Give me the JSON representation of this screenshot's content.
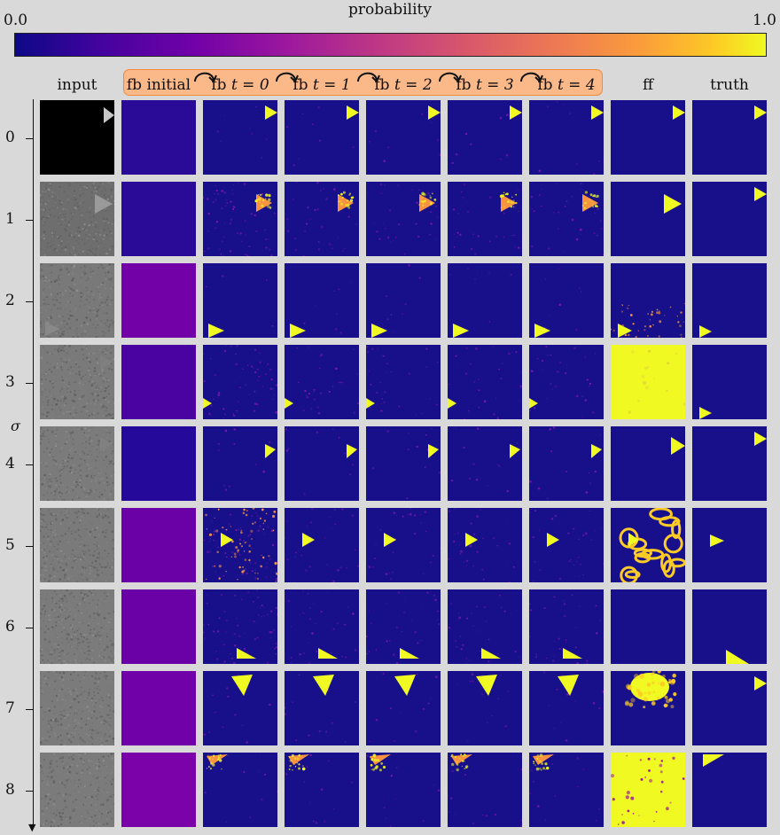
{
  "colorbar": {
    "title": "probability",
    "min_label": "0.0",
    "max_label": "1.0"
  },
  "columns": [
    {
      "key": "input",
      "label": "input"
    },
    {
      "key": "fb_initial",
      "label": "fb initial"
    },
    {
      "key": "fb_t0",
      "prefix": "fb ",
      "math": "t = 0"
    },
    {
      "key": "fb_t1",
      "prefix": "fb ",
      "math": "t = 1"
    },
    {
      "key": "fb_t2",
      "prefix": "fb ",
      "math": "t = 2"
    },
    {
      "key": "fb_t3",
      "prefix": "fb ",
      "math": "t = 3"
    },
    {
      "key": "fb_t4",
      "prefix": "fb ",
      "math": "t = 4"
    },
    {
      "key": "ff",
      "label": "ff"
    },
    {
      "key": "truth",
      "label": "truth"
    }
  ],
  "axis": {
    "label": "σ",
    "ticks": [
      "0",
      "1",
      "2",
      "3",
      "4",
      "5",
      "6",
      "7",
      "8"
    ]
  },
  "colors": {
    "background": "#d9d9d9",
    "low": "#17108a",
    "high": "#f0f921",
    "mid_orange": "#f89441",
    "fb_band": "#fbb98a",
    "fb_band_border": "#ef8a3a"
  },
  "rows": [
    {
      "sigma": "0",
      "input": {
        "bg": "#000000",
        "tri": "#c8c8c8"
      },
      "fb_initial": "#2a0b98",
      "fb": "clean",
      "ff": "clean",
      "truth": "tr"
    },
    {
      "sigma": "1",
      "input": {
        "bg": "#6e6e6e",
        "tri": "#9a9a9a"
      },
      "fb_initial": "#2a0b98",
      "fb": "noisy",
      "ff": "clean",
      "truth": "tr"
    },
    {
      "sigma": "2",
      "input": {
        "bg": "#797979",
        "tri": "#888888"
      },
      "fb_initial": "#7301a8",
      "fb": "clean",
      "ff": "specks",
      "truth": "bl"
    },
    {
      "sigma": "3",
      "input": {
        "bg": "#7a7a7a",
        "tri": "#7f7f7f"
      },
      "fb_initial": "#4a03a0",
      "fb": "noisy",
      "ff": "full",
      "truth": "bl"
    },
    {
      "sigma": "4",
      "input": {
        "bg": "#7b7b7b",
        "tri": "#808080"
      },
      "fb_initial": "#24099a",
      "fb": "blob",
      "ff": "clean",
      "truth": "tr"
    },
    {
      "sigma": "5",
      "input": {
        "bg": "#7a7a7a",
        "tri": "#7b7b7b"
      },
      "fb_initial": "#6a01a7",
      "fb": "noisy",
      "ff": "veins",
      "truth": "mid"
    },
    {
      "sigma": "6",
      "input": {
        "bg": "#7b7b7b",
        "tri": "#7b7b7b"
      },
      "fb_initial": "#6a01a7",
      "fb": "noisy",
      "ff": "empty",
      "truth": "br"
    },
    {
      "sigma": "7",
      "input": {
        "bg": "#7b7b7b",
        "tri": "#7b7b7b"
      },
      "fb_initial": "#7001a8",
      "fb": "blob",
      "ff": "cloud",
      "truth": "tr"
    },
    {
      "sigma": "8",
      "input": {
        "bg": "#7b7b7b",
        "tri": "#7b7b7b"
      },
      "fb_initial": "#7a02a8",
      "fb": "blob",
      "ff": "full",
      "truth": "tl"
    }
  ]
}
